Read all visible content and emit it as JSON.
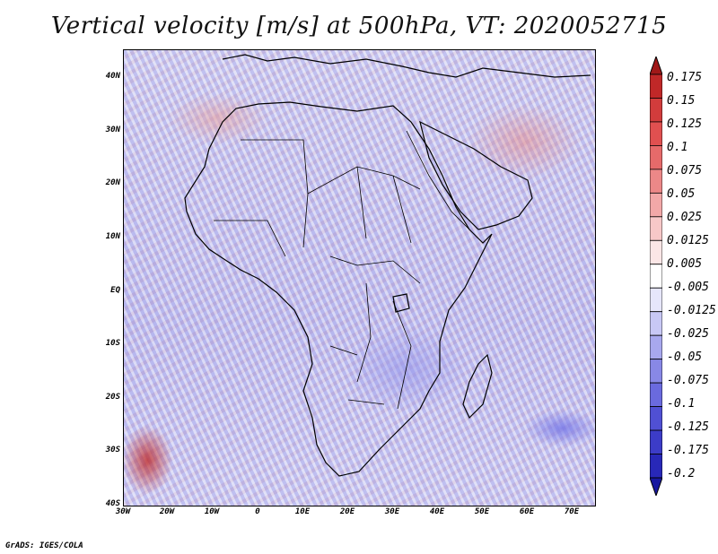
{
  "title": "Vertical velocity [m/s] at 500hPa, VT: 2020052715",
  "map": {
    "region": "Africa",
    "lat_labels": [
      "40N",
      "30N",
      "20N",
      "10N",
      "EQ",
      "10S",
      "20S",
      "30S",
      "40S"
    ],
    "lon_labels": [
      "30W",
      "20W",
      "10W",
      "0",
      "10E",
      "20E",
      "30E",
      "40E",
      "50E",
      "60E",
      "70E"
    ]
  },
  "colorbar": {
    "levels": [
      "0.175",
      "0.15",
      "0.125",
      "0.1",
      "0.075",
      "0.05",
      "0.025",
      "0.0125",
      "0.005",
      "-0.005",
      "-0.0125",
      "-0.025",
      "-0.05",
      "-0.075",
      "-0.1",
      "-0.125",
      "-0.175",
      "-0.2"
    ],
    "colors": [
      "#a01818",
      "#c02828",
      "#d23c3c",
      "#e05050",
      "#e66a6a",
      "#ec8888",
      "#f2a8a8",
      "#f7c8c8",
      "#fbe6e6",
      "#ffffff",
      "#e6e6fb",
      "#c8c8f5",
      "#a8a8ee",
      "#8888e6",
      "#6a6ade",
      "#5050d4",
      "#3c3cc8",
      "#2828b8",
      "#1818a0"
    ]
  },
  "credit": "GrADS: IGES/COLA"
}
